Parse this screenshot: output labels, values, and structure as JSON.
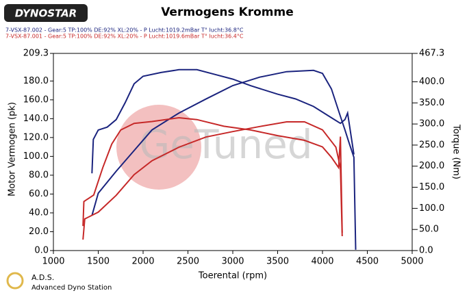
{
  "chart_data": {
    "type": "line",
    "title": "Vermogens Kromme",
    "logo": "DYNOSTAR",
    "watermark": "GeTuned",
    "footer_title": "A.D.S.",
    "footer_subtitle": "Advanced Dyno Station",
    "xlabel": "Toerental (rpm)",
    "ylabel": "Motor Vermogen (pk)",
    "y2label": "Torque (Nm)",
    "legend": [
      {
        "text": "7-VSX-87.002 - Gear:5 TP:100% DE:92% XL:20%   - P Lucht:1019.2mBar T° lucht:36.8°C",
        "color": "#1a237e"
      },
      {
        "text": "7-VSX-87.001 - Gear:5 TP:100% DE:92% XL:20%   - P Lucht:1019.6mBar T° lucht:36.4°C",
        "color": "#c62828"
      }
    ],
    "xlim": [
      1000,
      5000
    ],
    "xticks": [
      1000,
      1500,
      2000,
      2500,
      3000,
      3500,
      4000,
      4500,
      5000
    ],
    "ylim": [
      0,
      209.3
    ],
    "yticks": [
      {
        "value": 0,
        "label": "0.0"
      },
      {
        "value": 20,
        "label": "20.0"
      },
      {
        "value": 40,
        "label": "40.0"
      },
      {
        "value": 60,
        "label": "60.0"
      },
      {
        "value": 80,
        "label": "80.0"
      },
      {
        "value": 100,
        "label": "100.0"
      },
      {
        "value": 120,
        "label": "120.0"
      },
      {
        "value": 140,
        "label": "140.0"
      },
      {
        "value": 160,
        "label": "160.0"
      },
      {
        "value": 180,
        "label": "180.0"
      },
      209.3
    ],
    "y2lim": [
      0,
      467.3
    ],
    "y2ticks": [
      {
        "value": 0,
        "label": "0.0"
      },
      {
        "value": 50,
        "label": "50.0"
      },
      {
        "value": 100,
        "label": "100.0"
      },
      {
        "value": 150,
        "label": "150.0"
      },
      {
        "value": 200,
        "label": "200.0"
      },
      {
        "value": 250,
        "label": "250.0"
      },
      {
        "value": 300,
        "label": "300.0"
      },
      {
        "value": 350,
        "label": "350.0"
      },
      {
        "value": 400,
        "label": "400.0"
      },
      467.3
    ],
    "series": [
      {
        "legend": 0,
        "color": "#1a237e",
        "axis": "y",
        "x": [
          1430,
          1445,
          1500,
          1600,
          1700,
          1800,
          1900,
          2000,
          2200,
          2400,
          2600,
          2800,
          3000,
          3200,
          3500,
          3700,
          3900,
          4100,
          4200,
          4250,
          4280,
          4350
        ],
        "values": [
          82,
          118,
          128,
          131,
          139,
          157,
          177,
          185,
          189,
          192,
          192,
          187,
          182,
          175,
          166,
          161,
          153,
          141,
          135,
          139,
          146,
          102
        ]
      },
      {
        "legend": 0,
        "color": "#1a237e",
        "axis": "y2",
        "x": [
          1430,
          1500,
          1700,
          1900,
          2100,
          2400,
          2700,
          3000,
          3300,
          3600,
          3900,
          4000,
          4100,
          4200,
          4250,
          4300,
          4350,
          4370
        ],
        "values": [
          83,
          136,
          188,
          237,
          286,
          326,
          359,
          391,
          411,
          424,
          427,
          420,
          383,
          318,
          286,
          253,
          221,
          2
        ]
      },
      {
        "legend": 1,
        "color": "#c62828",
        "axis": "y",
        "x": [
          1330,
          1340,
          1450,
          1550,
          1650,
          1750,
          1900,
          2100,
          2400,
          2600,
          2900,
          3200,
          3500,
          3800,
          4000,
          4100,
          4180,
          4200,
          4220
        ],
        "values": [
          26,
          52,
          59,
          88,
          113,
          128,
          135,
          137,
          141,
          139,
          132,
          128,
          122,
          117,
          110,
          99,
          88,
          121,
          19
        ]
      },
      {
        "legend": 1,
        "color": "#c62828",
        "axis": "y2",
        "x": [
          1330,
          1350,
          1500,
          1700,
          1900,
          2100,
          2400,
          2700,
          3000,
          3300,
          3600,
          3800,
          4000,
          4150,
          4200,
          4220
        ],
        "values": [
          26,
          75,
          91,
          131,
          180,
          213,
          245,
          269,
          282,
          294,
          305,
          305,
          286,
          245,
          196,
          34
        ]
      }
    ]
  }
}
